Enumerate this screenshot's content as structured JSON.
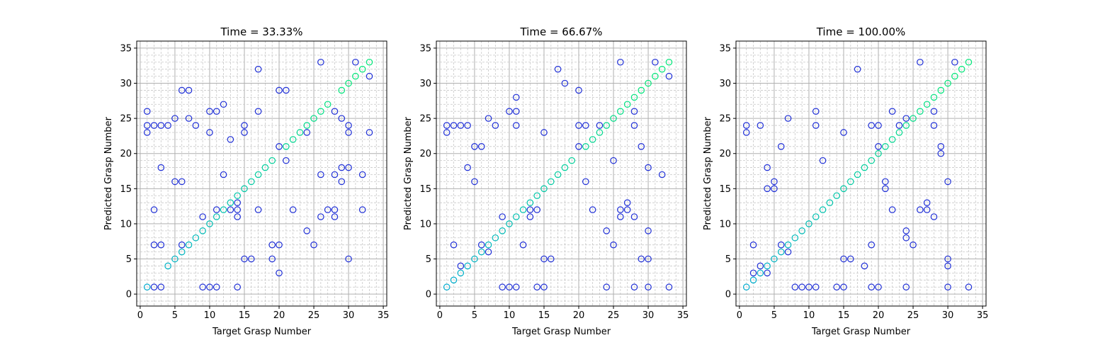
{
  "chart_data": [
    {
      "type": "scatter",
      "title": "Time = 33.33%",
      "xlabel": "Target Grasp Number",
      "ylabel": "Predicted Grasp Number",
      "xlim": [
        -0.5,
        35.5
      ],
      "ylim": [
        -1.7,
        36
      ],
      "xticks": [
        0,
        5,
        10,
        15,
        20,
        25,
        30,
        35
      ],
      "yticks": [
        0,
        5,
        10,
        15,
        20,
        25,
        30,
        35
      ],
      "grid": true,
      "points": [
        [
          1,
          1
        ],
        [
          1,
          23
        ],
        [
          1,
          24
        ],
        [
          1,
          26
        ],
        [
          2,
          1
        ],
        [
          2,
          7
        ],
        [
          2,
          12
        ],
        [
          2,
          24
        ],
        [
          3,
          1
        ],
        [
          3,
          7
        ],
        [
          3,
          18
        ],
        [
          3,
          24
        ],
        [
          4,
          4
        ],
        [
          4,
          24
        ],
        [
          5,
          5
        ],
        [
          5,
          16
        ],
        [
          5,
          25
        ],
        [
          6,
          6
        ],
        [
          6,
          7
        ],
        [
          6,
          16
        ],
        [
          6,
          29
        ],
        [
          7,
          7
        ],
        [
          7,
          25
        ],
        [
          7,
          29
        ],
        [
          8,
          8
        ],
        [
          8,
          24
        ],
        [
          9,
          1
        ],
        [
          9,
          9
        ],
        [
          9,
          11
        ],
        [
          10,
          1
        ],
        [
          10,
          10
        ],
        [
          10,
          23
        ],
        [
          10,
          26
        ],
        [
          11,
          1
        ],
        [
          11,
          11
        ],
        [
          11,
          12
        ],
        [
          11,
          26
        ],
        [
          12,
          12
        ],
        [
          12,
          17
        ],
        [
          12,
          27
        ],
        [
          13,
          12
        ],
        [
          13,
          13
        ],
        [
          13,
          22
        ],
        [
          14,
          1
        ],
        [
          14,
          11
        ],
        [
          14,
          12
        ],
        [
          14,
          13
        ],
        [
          14,
          14
        ],
        [
          15,
          5
        ],
        [
          15,
          15
        ],
        [
          15,
          23
        ],
        [
          15,
          24
        ],
        [
          16,
          5
        ],
        [
          16,
          16
        ],
        [
          17,
          12
        ],
        [
          17,
          17
        ],
        [
          17,
          26
        ],
        [
          17,
          32
        ],
        [
          18,
          18
        ],
        [
          19,
          5
        ],
        [
          19,
          7
        ],
        [
          19,
          19
        ],
        [
          20,
          3
        ],
        [
          20,
          7
        ],
        [
          20,
          21
        ],
        [
          20,
          29
        ],
        [
          21,
          19
        ],
        [
          21,
          21
        ],
        [
          21,
          29
        ],
        [
          22,
          12
        ],
        [
          22,
          22
        ],
        [
          23,
          23
        ],
        [
          24,
          9
        ],
        [
          24,
          23
        ],
        [
          24,
          24
        ],
        [
          25,
          7
        ],
        [
          25,
          25
        ],
        [
          26,
          11
        ],
        [
          26,
          17
        ],
        [
          26,
          26
        ],
        [
          26,
          33
        ],
        [
          27,
          12
        ],
        [
          27,
          27
        ],
        [
          28,
          11
        ],
        [
          28,
          12
        ],
        [
          28,
          17
        ],
        [
          28,
          26
        ],
        [
          29,
          16
        ],
        [
          29,
          18
        ],
        [
          29,
          25
        ],
        [
          29,
          29
        ],
        [
          30,
          5
        ],
        [
          30,
          18
        ],
        [
          30,
          23
        ],
        [
          30,
          24
        ],
        [
          30,
          30
        ],
        [
          31,
          31
        ],
        [
          31,
          33
        ],
        [
          32,
          12
        ],
        [
          32,
          17
        ],
        [
          32,
          32
        ],
        [
          33,
          23
        ],
        [
          33,
          31
        ],
        [
          33,
          33
        ]
      ]
    },
    {
      "type": "scatter",
      "title": "Time = 66.67%",
      "xlabel": "Target Grasp Number",
      "ylabel": "Predicted Grasp Number",
      "xlim": [
        -0.5,
        35.5
      ],
      "ylim": [
        -1.7,
        36
      ],
      "xticks": [
        0,
        5,
        10,
        15,
        20,
        25,
        30,
        35
      ],
      "yticks": [
        0,
        5,
        10,
        15,
        20,
        25,
        30,
        35
      ],
      "grid": true,
      "points": [
        [
          1,
          1
        ],
        [
          1,
          23
        ],
        [
          1,
          24
        ],
        [
          2,
          2
        ],
        [
          2,
          7
        ],
        [
          2,
          24
        ],
        [
          3,
          3
        ],
        [
          3,
          4
        ],
        [
          3,
          24
        ],
        [
          4,
          4
        ],
        [
          4,
          18
        ],
        [
          4,
          24
        ],
        [
          5,
          5
        ],
        [
          5,
          16
        ],
        [
          5,
          21
        ],
        [
          6,
          6
        ],
        [
          6,
          7
        ],
        [
          6,
          21
        ],
        [
          7,
          6
        ],
        [
          7,
          7
        ],
        [
          7,
          25
        ],
        [
          8,
          8
        ],
        [
          8,
          24
        ],
        [
          9,
          1
        ],
        [
          9,
          9
        ],
        [
          9,
          11
        ],
        [
          10,
          1
        ],
        [
          10,
          10
        ],
        [
          10,
          26
        ],
        [
          11,
          1
        ],
        [
          11,
          11
        ],
        [
          11,
          24
        ],
        [
          11,
          26
        ],
        [
          11,
          28
        ],
        [
          12,
          7
        ],
        [
          12,
          12
        ],
        [
          13,
          11
        ],
        [
          13,
          12
        ],
        [
          13,
          13
        ],
        [
          14,
          1
        ],
        [
          14,
          12
        ],
        [
          14,
          14
        ],
        [
          15,
          1
        ],
        [
          15,
          5
        ],
        [
          15,
          15
        ],
        [
          15,
          23
        ],
        [
          16,
          5
        ],
        [
          16,
          16
        ],
        [
          17,
          17
        ],
        [
          17,
          32
        ],
        [
          18,
          18
        ],
        [
          18,
          30
        ],
        [
          19,
          19
        ],
        [
          20,
          21
        ],
        [
          20,
          24
        ],
        [
          20,
          29
        ],
        [
          21,
          16
        ],
        [
          21,
          21
        ],
        [
          21,
          24
        ],
        [
          22,
          12
        ],
        [
          22,
          22
        ],
        [
          23,
          23
        ],
        [
          23,
          24
        ],
        [
          24,
          1
        ],
        [
          24,
          9
        ],
        [
          24,
          24
        ],
        [
          25,
          7
        ],
        [
          25,
          19
        ],
        [
          25,
          25
        ],
        [
          26,
          11
        ],
        [
          26,
          12
        ],
        [
          26,
          26
        ],
        [
          26,
          33
        ],
        [
          27,
          12
        ],
        [
          27,
          13
        ],
        [
          27,
          27
        ],
        [
          28,
          1
        ],
        [
          28,
          11
        ],
        [
          28,
          24
        ],
        [
          28,
          26
        ],
        [
          28,
          28
        ],
        [
          29,
          5
        ],
        [
          29,
          21
        ],
        [
          29,
          29
        ],
        [
          30,
          1
        ],
        [
          30,
          5
        ],
        [
          30,
          9
        ],
        [
          30,
          18
        ],
        [
          30,
          30
        ],
        [
          31,
          31
        ],
        [
          31,
          33
        ],
        [
          32,
          17
        ],
        [
          32,
          32
        ],
        [
          33,
          1
        ],
        [
          33,
          31
        ],
        [
          33,
          33
        ]
      ]
    },
    {
      "type": "scatter",
      "title": "Time = 100.00%",
      "xlabel": "Target Grasp Number",
      "ylabel": "Predicted Grasp Number",
      "xlim": [
        -0.5,
        35.5
      ],
      "ylim": [
        -1.7,
        36
      ],
      "xticks": [
        0,
        5,
        10,
        15,
        20,
        25,
        30,
        35
      ],
      "yticks": [
        0,
        5,
        10,
        15,
        20,
        25,
        30,
        35
      ],
      "grid": true,
      "points": [
        [
          1,
          1
        ],
        [
          1,
          23
        ],
        [
          1,
          24
        ],
        [
          2,
          2
        ],
        [
          2,
          3
        ],
        [
          2,
          7
        ],
        [
          3,
          3
        ],
        [
          3,
          4
        ],
        [
          3,
          24
        ],
        [
          4,
          3
        ],
        [
          4,
          4
        ],
        [
          4,
          15
        ],
        [
          4,
          18
        ],
        [
          5,
          5
        ],
        [
          5,
          15
        ],
        [
          5,
          16
        ],
        [
          6,
          6
        ],
        [
          6,
          7
        ],
        [
          6,
          21
        ],
        [
          7,
          6
        ],
        [
          7,
          7
        ],
        [
          7,
          25
        ],
        [
          8,
          1
        ],
        [
          8,
          8
        ],
        [
          9,
          1
        ],
        [
          9,
          9
        ],
        [
          10,
          1
        ],
        [
          10,
          10
        ],
        [
          11,
          1
        ],
        [
          11,
          11
        ],
        [
          11,
          24
        ],
        [
          11,
          26
        ],
        [
          12,
          12
        ],
        [
          12,
          19
        ],
        [
          13,
          13
        ],
        [
          14,
          1
        ],
        [
          14,
          14
        ],
        [
          15,
          1
        ],
        [
          15,
          5
        ],
        [
          15,
          15
        ],
        [
          15,
          23
        ],
        [
          16,
          5
        ],
        [
          16,
          16
        ],
        [
          17,
          17
        ],
        [
          17,
          32
        ],
        [
          18,
          4
        ],
        [
          18,
          18
        ],
        [
          19,
          1
        ],
        [
          19,
          7
        ],
        [
          19,
          19
        ],
        [
          19,
          24
        ],
        [
          20,
          1
        ],
        [
          20,
          20
        ],
        [
          20,
          21
        ],
        [
          20,
          24
        ],
        [
          21,
          15
        ],
        [
          21,
          16
        ],
        [
          21,
          21
        ],
        [
          22,
          12
        ],
        [
          22,
          22
        ],
        [
          22,
          26
        ],
        [
          23,
          23
        ],
        [
          23,
          24
        ],
        [
          24,
          1
        ],
        [
          24,
          8
        ],
        [
          24,
          9
        ],
        [
          24,
          24
        ],
        [
          24,
          25
        ],
        [
          25,
          7
        ],
        [
          25,
          25
        ],
        [
          26,
          12
        ],
        [
          26,
          26
        ],
        [
          26,
          33
        ],
        [
          27,
          12
        ],
        [
          27,
          13
        ],
        [
          27,
          27
        ],
        [
          28,
          11
        ],
        [
          28,
          24
        ],
        [
          28,
          26
        ],
        [
          28,
          28
        ],
        [
          29,
          20
        ],
        [
          29,
          21
        ],
        [
          29,
          29
        ],
        [
          30,
          1
        ],
        [
          30,
          4
        ],
        [
          30,
          5
        ],
        [
          30,
          16
        ],
        [
          30,
          30
        ],
        [
          31,
          31
        ],
        [
          31,
          33
        ],
        [
          32,
          32
        ],
        [
          33,
          1
        ],
        [
          33,
          33
        ]
      ]
    }
  ]
}
